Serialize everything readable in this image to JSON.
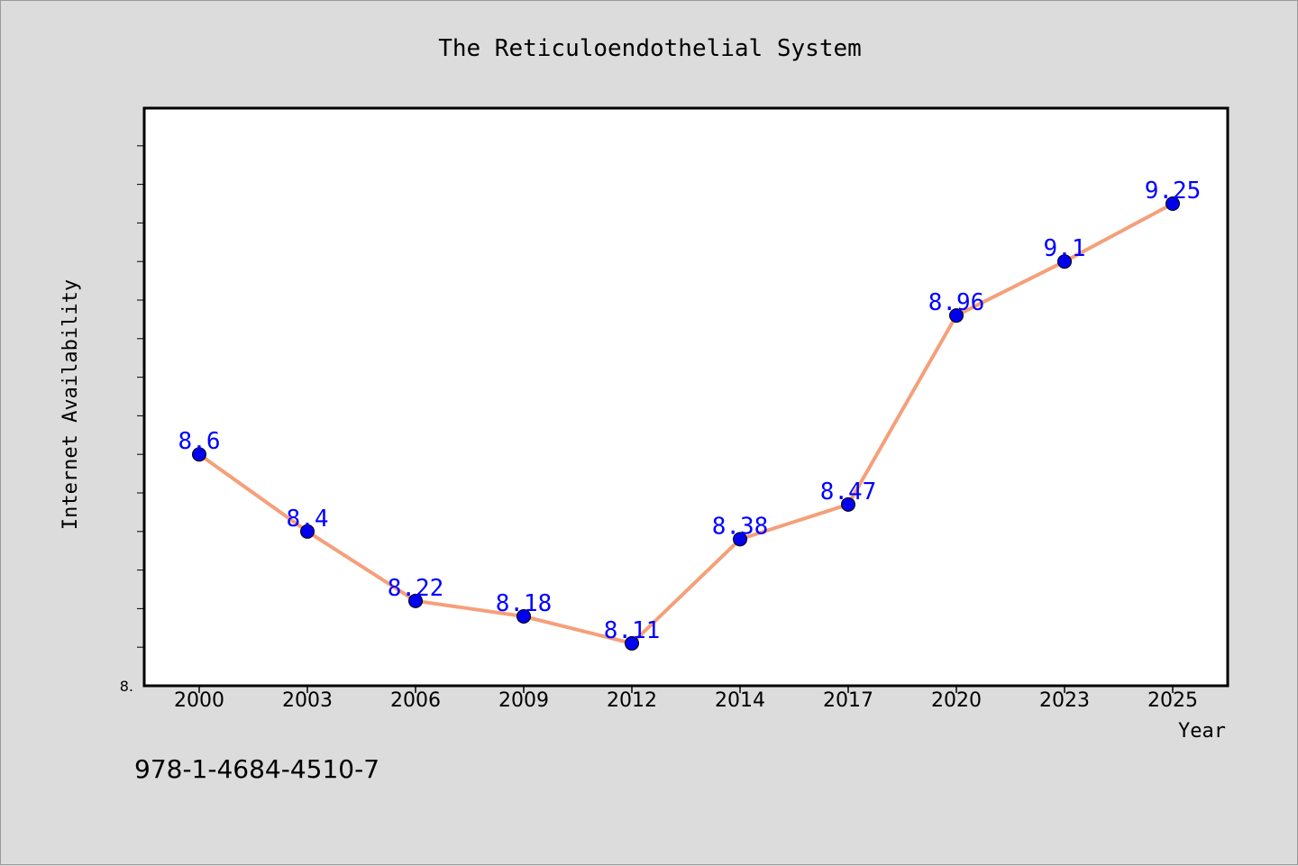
{
  "chart_data": {
    "type": "line",
    "title": "The Reticuloendothelial System",
    "xlabel": "Year",
    "ylabel": "Internet Availability",
    "categories": [
      "2000",
      "2003",
      "2006",
      "2009",
      "2012",
      "2014",
      "2017",
      "2020",
      "2023",
      "2025"
    ],
    "values": [
      8.6,
      8.4,
      8.22,
      8.18,
      8.11,
      8.38,
      8.47,
      8.96,
      9.1,
      9.25
    ],
    "value_labels": [
      "8.6",
      "8.4",
      "8.22",
      "8.18",
      "8.11",
      "8.38",
      "8.47",
      "8.96",
      "9.1",
      "9.25"
    ],
    "ytick_labels": [
      "8."
    ],
    "ylim": [
      8.0,
      9.5
    ],
    "grid": false,
    "line_color": "#f4a07a",
    "marker_color": "#0000ee",
    "label_color": "#0000ff"
  },
  "footer": {
    "isbn": "978-1-4684-4510-7"
  }
}
